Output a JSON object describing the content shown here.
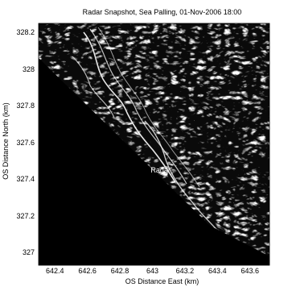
{
  "chart_data": {
    "type": "heatmap",
    "title": "Radar Snapshot, Sea Palling, 01-Nov-2006 18:00",
    "xlabel": "OS Distance East (km)",
    "ylabel": "OS Distance North (km)",
    "xlim": [
      642.3,
      643.72
    ],
    "ylim": [
      326.93,
      328.25
    ],
    "x_ticks": [
      {
        "value": 642.4,
        "label": "642.4"
      },
      {
        "value": 642.6,
        "label": "642.6"
      },
      {
        "value": 642.8,
        "label": "642.8"
      },
      {
        "value": 643.0,
        "label": "643"
      },
      {
        "value": 643.2,
        "label": "643.2"
      },
      {
        "value": 643.4,
        "label": "643.4"
      },
      {
        "value": 643.6,
        "label": "643.6"
      }
    ],
    "y_ticks": [
      {
        "value": 327.0,
        "label": "327"
      },
      {
        "value": 327.2,
        "label": "327.2"
      },
      {
        "value": 327.4,
        "label": "327.4"
      },
      {
        "value": 327.6,
        "label": "327.6"
      },
      {
        "value": 327.8,
        "label": "327.8"
      },
      {
        "value": 328.0,
        "label": "328"
      },
      {
        "value": 328.2,
        "label": "328.2"
      }
    ],
    "annotations": [
      {
        "text": "Radar",
        "x": 643.05,
        "y": 327.45
      }
    ],
    "colormap": "grayscale",
    "shadow_region": "land (no radar return) below the diagonal from north-west to south-east",
    "colors": {
      "land": "#000000",
      "sea_dark": "#050505",
      "return_bright": "#ffffff"
    }
  }
}
